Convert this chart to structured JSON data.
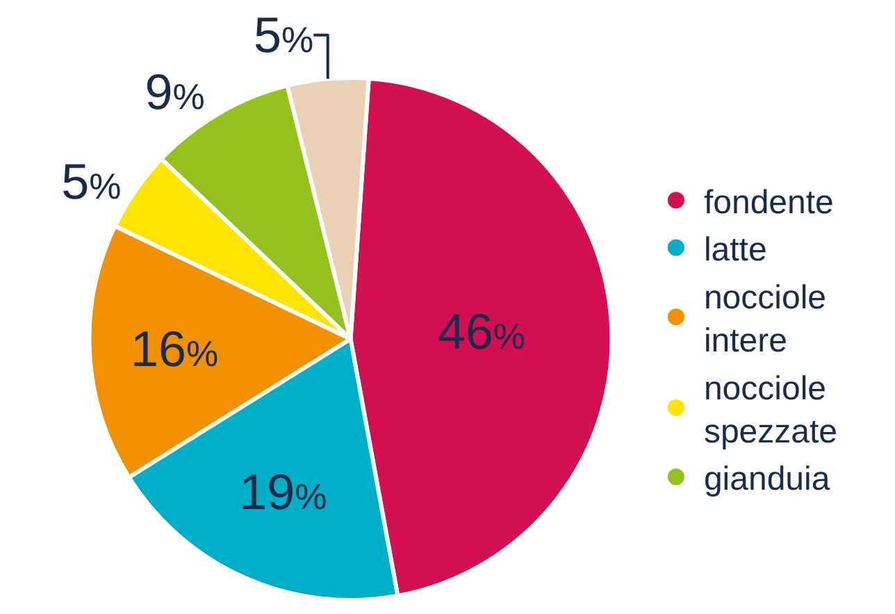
{
  "chart_data": {
    "type": "pie",
    "categories": [
      "fondente",
      "latte",
      "nocciole intere",
      "nocciole spezzate",
      "gianduia",
      null
    ],
    "values": [
      46,
      19,
      16,
      5,
      9,
      5
    ],
    "colors": [
      "#d40e52",
      "#00aec7",
      "#f29100",
      "#ffe500",
      "#95c11f",
      "#ead1b5"
    ],
    "value_labels": [
      "46%",
      "19%",
      "16%",
      "5%",
      "9%",
      "5%"
    ],
    "legend": "right"
  }
}
